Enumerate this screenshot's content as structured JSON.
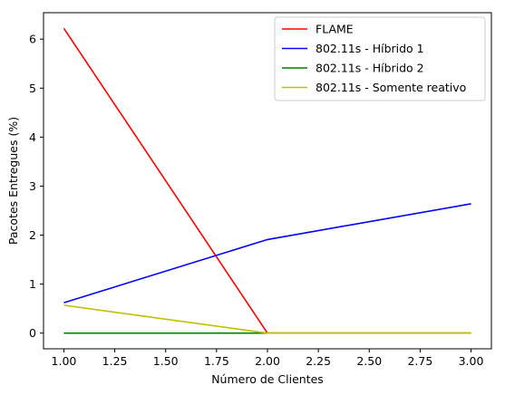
{
  "chart_data": {
    "type": "line",
    "xlabel": "Número de Clientes",
    "ylabel": "Pacotes Entregues (%)",
    "xlim": [
      0.9,
      3.1
    ],
    "ylim": [
      -0.32,
      6.54
    ],
    "xticks": [
      1.0,
      1.25,
      1.5,
      1.75,
      2.0,
      2.25,
      2.5,
      2.75,
      3.0
    ],
    "xtick_labels": [
      "1.00",
      "1.25",
      "1.50",
      "1.75",
      "2.00",
      "2.25",
      "2.50",
      "2.75",
      "3.00"
    ],
    "yticks": [
      0,
      1,
      2,
      3,
      4,
      5,
      6
    ],
    "ytick_labels": [
      "0",
      "1",
      "2",
      "3",
      "4",
      "5",
      "6"
    ],
    "grid": false,
    "legend_position": "top-right",
    "x": [
      1,
      2,
      3
    ],
    "series": [
      {
        "name": "FLAME",
        "color": "#ff0000",
        "values": [
          6.22,
          0.0,
          0.0
        ]
      },
      {
        "name": "802.11s - Híbrido 1",
        "color": "#0000ff",
        "values": [
          0.62,
          1.91,
          2.64
        ]
      },
      {
        "name": "802.11s - Híbrido 2",
        "color": "#008000",
        "values": [
          0.0,
          0.0,
          0.0
        ]
      },
      {
        "name": "802.11s - Somente reativo",
        "color": "#bfbf00",
        "values": [
          0.57,
          0.0,
          0.0
        ]
      }
    ]
  }
}
